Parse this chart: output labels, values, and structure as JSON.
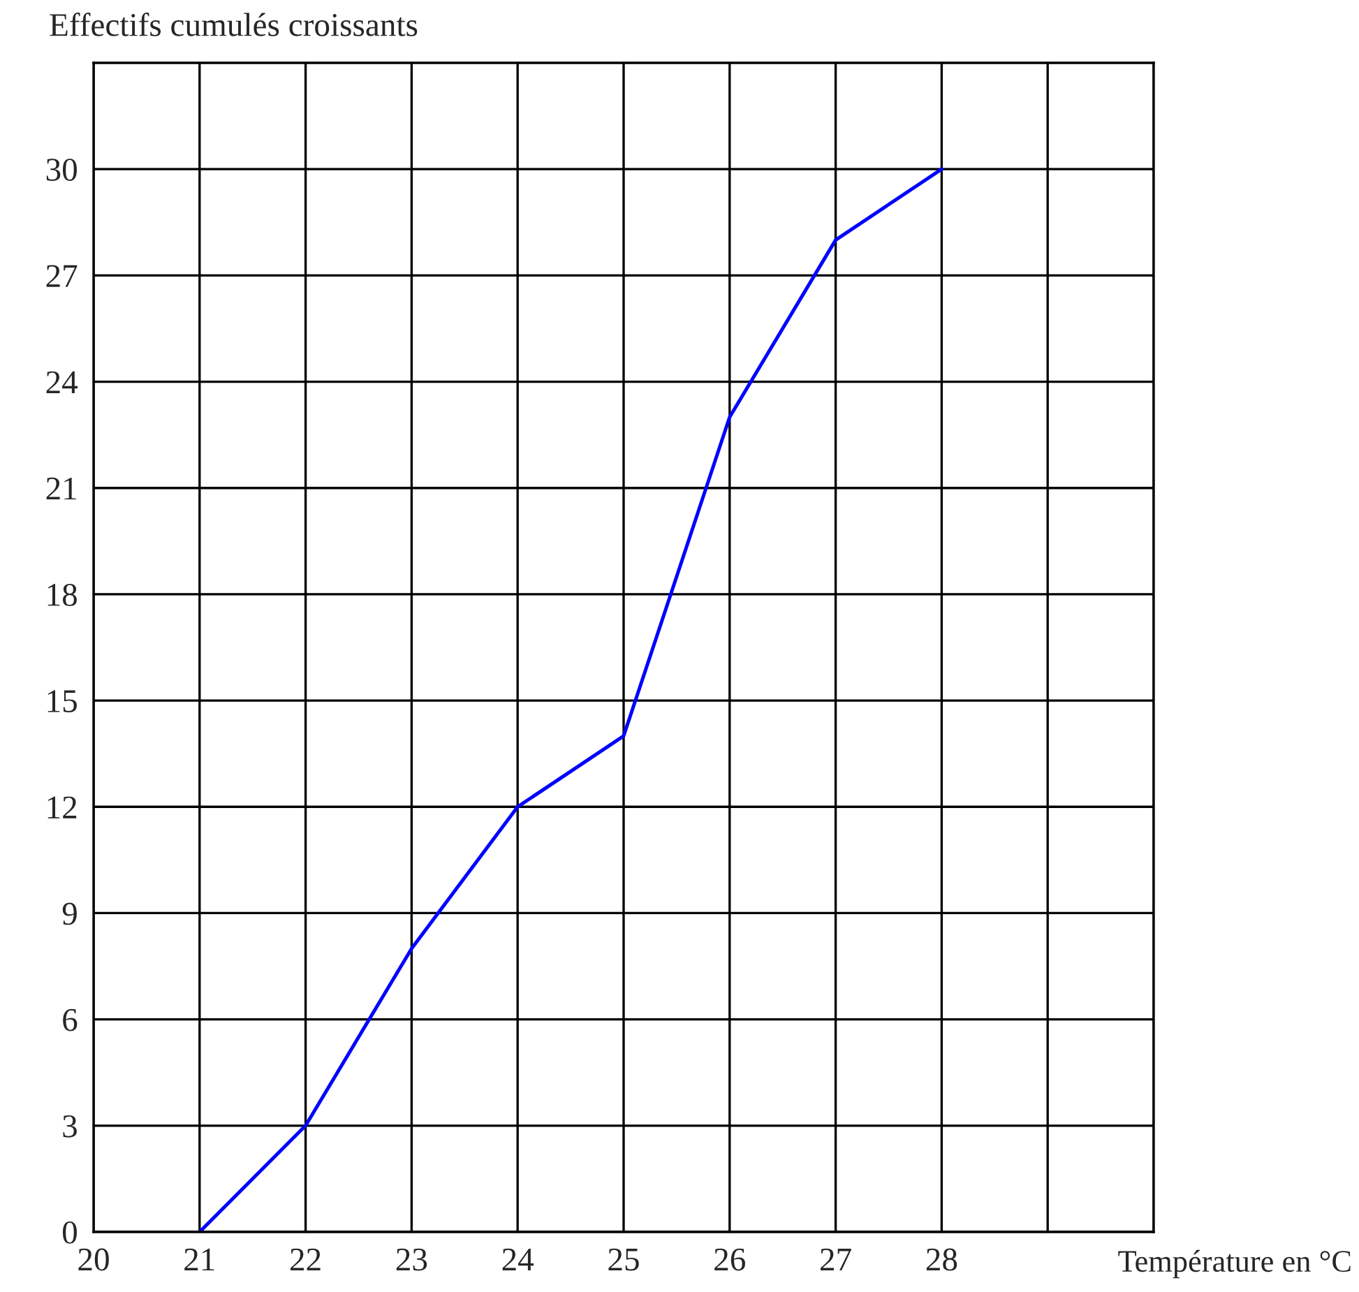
{
  "chart_data": {
    "type": "line",
    "xlabel": "Température en °C",
    "ylabel": "Effectifs cumulés croissants",
    "x": [
      21,
      22,
      23,
      24,
      25,
      26,
      27,
      28
    ],
    "series": [
      {
        "color": "#0000ff",
        "values": [
          0,
          3,
          8,
          12,
          14,
          23,
          28,
          30
        ]
      }
    ],
    "xlim": [
      20,
      30
    ],
    "xticks": [
      20,
      21,
      22,
      23,
      24,
      25,
      26,
      27,
      28,
      {
        "value": 29,
        "label": null
      },
      {
        "value": 30,
        "label": null
      }
    ],
    "ylim": [
      0,
      33
    ],
    "yticks": [
      0,
      3,
      6,
      9,
      12,
      15,
      18,
      21,
      24,
      27,
      30
    ],
    "grid": true,
    "marker": "none",
    "line_style": "solid"
  }
}
